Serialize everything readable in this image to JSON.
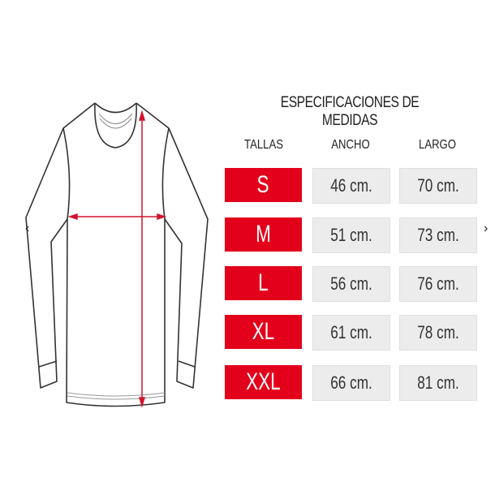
{
  "title": "ESPECIFICACIONES DE MEDIDAS",
  "headers": {
    "size": "TALLAS",
    "width": "ANCHO",
    "length": "LARGO"
  },
  "rows": [
    {
      "size": "S",
      "width": "46 cm.",
      "length": "70 cm."
    },
    {
      "size": "M",
      "width": "51 cm.",
      "length": "73 cm."
    },
    {
      "size": "L",
      "width": "56 cm.",
      "length": "76 cm."
    },
    {
      "size": "XL",
      "width": "61 cm.",
      "length": "78 cm."
    },
    {
      "size": "XXL",
      "width": "66 cm.",
      "length": "81 cm."
    }
  ],
  "nav": {
    "prev": "‹",
    "next": "›"
  },
  "colors": {
    "size_cell": "#e3001b",
    "value_cell": "#ececec",
    "measure_arrow": "#d0142c"
  }
}
